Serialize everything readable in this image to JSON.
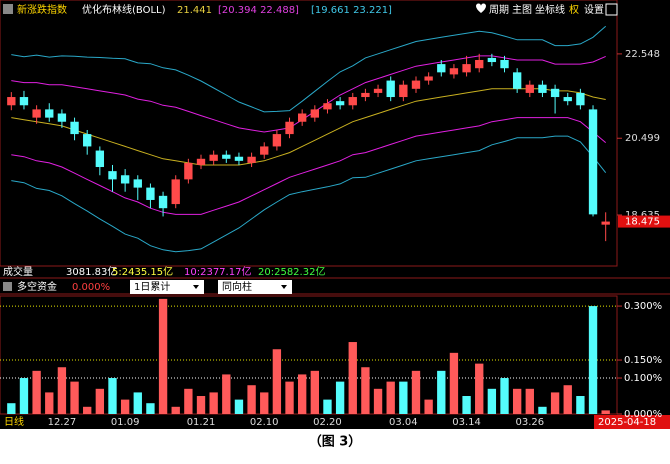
{
  "header": {
    "index_name": "新涨跌指数",
    "indicator": "优化布林线(BOLL)",
    "mid": "21.441",
    "inner": "[20.394 22.488]",
    "outer": "[19.661 23.221]",
    "menu": [
      "周期",
      "主图",
      "坐标线",
      "权",
      "设置"
    ]
  },
  "volume": {
    "label": "成交量",
    "total": "3081.83亿",
    "ma5": "5:2435.15亿",
    "ma10": "10:2377.17亿",
    "ma20": "20:2582.32亿"
  },
  "panel": {
    "label": "多空资金",
    "value": "0.000%",
    "selects": [
      "1日累计",
      "同向柱"
    ]
  },
  "period": "日线",
  "date": "2025-04-18",
  "caption": "（图 3）",
  "chart_data": [
    {
      "type": "candlestick",
      "up_color": "#ff4a4a",
      "down_color": "#54fcfc",
      "open": [
        21.3,
        21.5,
        21.0,
        21.2,
        21.1,
        20.9,
        20.6,
        20.2,
        19.7,
        19.6,
        19.5,
        19.3,
        19.1,
        18.9,
        19.5,
        19.85,
        19.95,
        20.1,
        20.05,
        19.9,
        20.1,
        20.3,
        20.6,
        20.9,
        21.0,
        21.2,
        21.4,
        21.3,
        21.5,
        21.6,
        21.9,
        21.5,
        21.7,
        21.9,
        22.3,
        22.05,
        22.1,
        22.2,
        22.45,
        22.4,
        22.1,
        21.6,
        21.8,
        21.7,
        21.5,
        21.6,
        21.2,
        18.4
      ],
      "high": [
        21.62,
        21.65,
        21.3,
        21.35,
        21.2,
        21.0,
        20.7,
        20.3,
        19.85,
        19.75,
        19.6,
        19.4,
        19.2,
        19.6,
        20.0,
        20.1,
        20.2,
        20.2,
        20.15,
        20.15,
        20.4,
        20.7,
        21.0,
        21.2,
        21.3,
        21.45,
        21.5,
        21.6,
        21.7,
        21.8,
        22.0,
        21.9,
        22.0,
        22.1,
        22.4,
        22.3,
        22.5,
        22.55,
        22.55,
        22.5,
        22.2,
        21.9,
        21.9,
        21.8,
        21.6,
        21.7,
        21.3,
        18.7
      ],
      "low": [
        21.18,
        21.2,
        20.85,
        20.9,
        20.75,
        20.45,
        20.1,
        19.6,
        19.2,
        19.2,
        19.0,
        18.8,
        18.6,
        18.8,
        19.4,
        19.75,
        19.85,
        19.9,
        19.85,
        19.8,
        20.0,
        20.2,
        20.5,
        20.8,
        20.9,
        21.1,
        21.2,
        21.2,
        21.4,
        21.5,
        21.4,
        21.4,
        21.6,
        21.8,
        22.0,
        21.95,
        22.0,
        22.1,
        22.25,
        22.1,
        21.6,
        21.5,
        21.5,
        21.1,
        21.3,
        21.2,
        18.6,
        18.0
      ],
      "close": [
        21.5,
        21.3,
        21.2,
        21.0,
        20.9,
        20.6,
        20.3,
        19.8,
        19.5,
        19.4,
        19.3,
        19.0,
        18.8,
        19.5,
        19.9,
        20.0,
        20.1,
        20.0,
        19.95,
        20.05,
        20.3,
        20.6,
        20.9,
        21.1,
        21.2,
        21.35,
        21.3,
        21.5,
        21.6,
        21.7,
        21.5,
        21.8,
        21.9,
        22.0,
        22.1,
        22.2,
        22.3,
        22.4,
        22.35,
        22.2,
        21.7,
        21.8,
        21.6,
        21.5,
        21.4,
        21.3,
        18.65,
        18.475
      ],
      "lines": [
        {
          "color": "#2aa8c8",
          "values": [
            22.53,
            22.48,
            22.52,
            22.47,
            22.5,
            22.49,
            22.47,
            22.46,
            22.44,
            22.43,
            22.33,
            22.31,
            22.21,
            22.16,
            22.03,
            21.89,
            21.72,
            21.55,
            21.38,
            21.26,
            21.14,
            21.15,
            21.17,
            21.4,
            21.64,
            21.88,
            22.11,
            22.26,
            22.45,
            22.55,
            22.65,
            22.75,
            22.85,
            22.9,
            22.95,
            23.0,
            23.05,
            23.1,
            23.06,
            22.98,
            22.89,
            22.89,
            22.89,
            22.75,
            22.75,
            22.79,
            22.95,
            23.221
          ]
        },
        {
          "color": "#e020e0",
          "values": [
            21.9,
            21.85,
            21.85,
            21.8,
            21.8,
            21.75,
            21.7,
            21.65,
            21.6,
            21.55,
            21.45,
            21.4,
            21.3,
            21.25,
            21.15,
            21.05,
            20.95,
            20.85,
            20.75,
            20.7,
            20.65,
            20.7,
            20.75,
            20.95,
            21.15,
            21.35,
            21.55,
            21.7,
            21.85,
            21.95,
            22.05,
            22.15,
            22.25,
            22.3,
            22.35,
            22.4,
            22.45,
            22.5,
            22.5,
            22.45,
            22.4,
            22.4,
            22.4,
            22.3,
            22.3,
            22.3,
            22.35,
            22.488
          ]
        },
        {
          "color": "#c8b020",
          "values": [
            21.0,
            20.95,
            20.9,
            20.85,
            20.8,
            20.7,
            20.6,
            20.5,
            20.4,
            20.3,
            20.2,
            20.1,
            20.0,
            19.95,
            19.9,
            19.85,
            19.85,
            19.85,
            19.85,
            19.9,
            19.95,
            20.05,
            20.15,
            20.3,
            20.45,
            20.6,
            20.75,
            20.9,
            21.0,
            21.1,
            21.2,
            21.3,
            21.4,
            21.45,
            21.5,
            21.55,
            21.6,
            21.65,
            21.7,
            21.7,
            21.7,
            21.7,
            21.7,
            21.65,
            21.65,
            21.6,
            21.5,
            21.441
          ]
        },
        {
          "color": "#e020e0",
          "values": [
            20.1,
            20.05,
            19.95,
            19.9,
            19.8,
            19.65,
            19.5,
            19.35,
            19.2,
            19.05,
            18.95,
            18.8,
            18.7,
            18.65,
            18.65,
            18.65,
            18.75,
            18.85,
            18.95,
            19.1,
            19.25,
            19.4,
            19.55,
            19.65,
            19.75,
            19.85,
            19.95,
            20.1,
            20.15,
            20.25,
            20.35,
            20.45,
            20.55,
            20.6,
            20.65,
            20.7,
            20.75,
            20.8,
            20.9,
            20.95,
            21.0,
            21.0,
            21.0,
            21.0,
            21.0,
            20.9,
            20.65,
            20.394
          ]
        },
        {
          "color": "#2aa8c8",
          "values": [
            19.47,
            19.42,
            19.28,
            19.23,
            19.1,
            18.91,
            18.73,
            18.54,
            18.36,
            18.17,
            18.07,
            17.89,
            17.79,
            17.74,
            17.77,
            17.81,
            17.98,
            18.15,
            18.32,
            18.54,
            18.76,
            18.95,
            19.13,
            19.2,
            19.26,
            19.32,
            19.39,
            19.54,
            19.55,
            19.65,
            19.75,
            19.85,
            19.95,
            20.0,
            20.05,
            20.1,
            20.15,
            20.2,
            20.34,
            20.42,
            20.51,
            20.51,
            20.51,
            20.55,
            20.55,
            20.41,
            20.05,
            19.661
          ]
        }
      ],
      "ylim": [
        17.42,
        23.42
      ],
      "yticks": [
        18.635,
        20.499,
        22.548
      ]
    },
    {
      "type": "bar",
      "categories": [
        null,
        null,
        null,
        null,
        "12.27",
        null,
        null,
        null,
        null,
        "01.09",
        null,
        null,
        null,
        null,
        null,
        "01.21",
        null,
        null,
        null,
        null,
        "02.10",
        null,
        null,
        null,
        null,
        "02.20",
        null,
        null,
        null,
        null,
        null,
        "03.04",
        null,
        null,
        null,
        null,
        "03.14",
        null,
        null,
        null,
        null,
        "03.26",
        null,
        null,
        null,
        null,
        null,
        null
      ],
      "values": [
        0.03,
        0.1,
        0.12,
        0.06,
        0.13,
        0.09,
        0.02,
        0.07,
        0.1,
        0.04,
        0.06,
        0.03,
        0.32,
        0.02,
        0.07,
        0.05,
        0.06,
        0.11,
        0.04,
        0.08,
        0.06,
        0.18,
        0.09,
        0.11,
        0.12,
        0.04,
        0.09,
        0.2,
        0.13,
        0.07,
        0.09,
        0.09,
        0.12,
        0.04,
        0.12,
        0.17,
        0.05,
        0.14,
        0.07,
        0.1,
        0.07,
        0.07,
        0.02,
        0.06,
        0.08,
        0.05,
        0.3,
        0.01
      ],
      "colors": [
        "#54fcfc",
        "#54fcfc",
        "#ff5a5a",
        "#ff5a5a",
        "#ff5a5a",
        "#ff5a5a",
        "#ff5a5a",
        "#ff5a5a",
        "#54fcfc",
        "#ff5a5a",
        "#54fcfc",
        "#54fcfc",
        "#ff5a5a",
        "#ff5a5a",
        "#ff5a5a",
        "#ff5a5a",
        "#ff5a5a",
        "#ff5a5a",
        "#54fcfc",
        "#ff5a5a",
        "#ff5a5a",
        "#ff5a5a",
        "#ff5a5a",
        "#ff5a5a",
        "#ff5a5a",
        "#54fcfc",
        "#54fcfc",
        "#ff5a5a",
        "#ff5a5a",
        "#ff5a5a",
        "#ff5a5a",
        "#54fcfc",
        "#ff5a5a",
        "#ff5a5a",
        "#54fcfc",
        "#ff5a5a",
        "#54fcfc",
        "#ff5a5a",
        "#54fcfc",
        "#54fcfc",
        "#ff5a5a",
        "#ff5a5a",
        "#54fcfc",
        "#ff5a5a",
        "#ff5a5a",
        "#54fcfc",
        "#54fcfc",
        "#ff5a5a"
      ],
      "ylim": [
        0,
        0.328
      ],
      "yticks": [
        {
          "value": 0,
          "label": "0.000%"
        },
        {
          "value": 0.1,
          "label": "0.100%"
        },
        {
          "value": 0.15,
          "label": "0.150%"
        },
        {
          "value": 0.3,
          "label": "0.300%"
        }
      ],
      "tick_colors": [
        "#ffffff",
        "#ffffff",
        "#e8e800",
        "#e8e800"
      ]
    }
  ]
}
